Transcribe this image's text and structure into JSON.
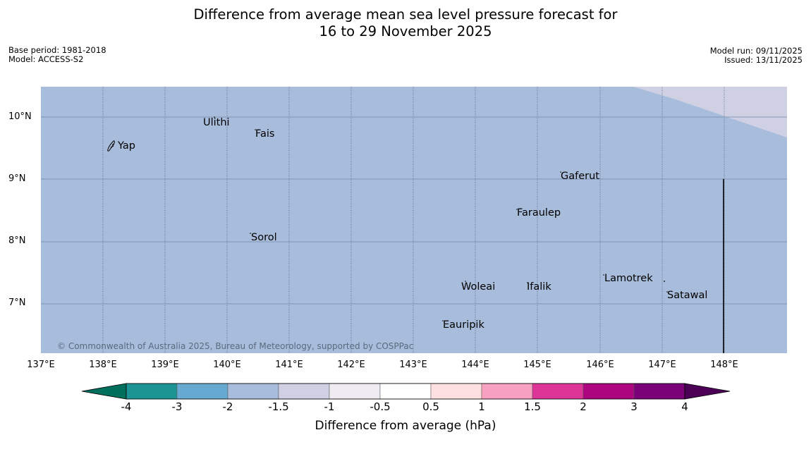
{
  "title": {
    "line1": "Difference from average mean sea level pressure forecast for",
    "line2": "16 to 29 November 2025"
  },
  "meta_left": {
    "base_period": "Base period: 1981-2018",
    "model": "Model: ACCESS-S2"
  },
  "meta_right": {
    "model_run": "Model run: 09/11/2025",
    "issued": "Issued: 13/11/2025"
  },
  "map": {
    "copyright": "© Commonwealth of Australia 2025, Bureau of Meteorology, supported by COSPPac",
    "background_anomaly_hPa": -2,
    "northeast_corner_anomaly_hPa": -1.5,
    "lat_labels": [
      "10°N",
      "9°N",
      "8°N",
      "7°N"
    ],
    "lon_labels": [
      "137°E",
      "138°E",
      "139°E",
      "140°E",
      "141°E",
      "142°E",
      "143°E",
      "144°E",
      "145°E",
      "146°E",
      "147°E",
      "148°E"
    ],
    "places": [
      "Ulithi",
      "Fais",
      "Yap",
      "Gaferut",
      "Faraulep",
      "Sorol",
      "Lamotrek",
      "Woleai",
      "Ifalik",
      "Satawal",
      "Eauripik"
    ]
  },
  "colorbar": {
    "title": "Difference from average (hPa)",
    "ticks": [
      "-4",
      "-3",
      "-2",
      "-1.5",
      "-1",
      "-0.5",
      "0.5",
      "1",
      "1.5",
      "2",
      "3",
      "4"
    ],
    "colors": [
      "#00705d",
      "#1c9494",
      "#66aad2",
      "#a8bcdb",
      "#d0d0e5",
      "#efebf2",
      "#ffffff",
      "#fee0e0",
      "#f8a0bf",
      "#dd3597",
      "#ad0580",
      "#7a0177",
      "#4b0055"
    ]
  }
}
